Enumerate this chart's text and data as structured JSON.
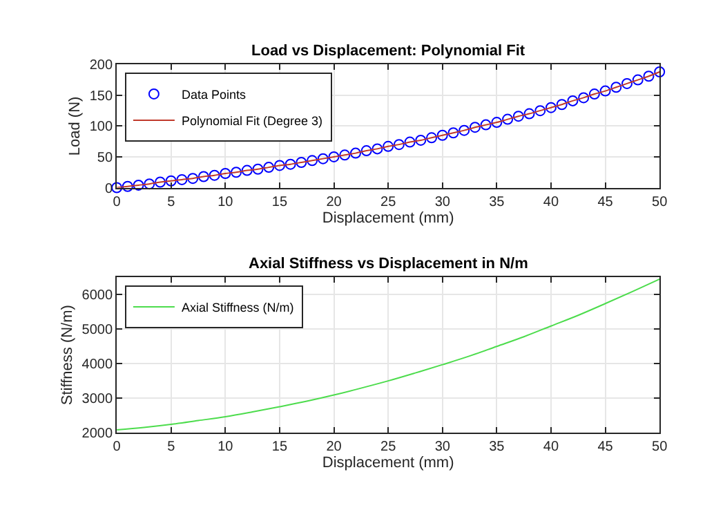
{
  "chart_data": [
    {
      "type": "scatter",
      "title": "Load vs Displacement: Polynomial Fit",
      "xlabel": "Displacement (mm)",
      "ylabel": "Load (N)",
      "xlim": [
        0,
        50
      ],
      "xticks": [
        0,
        5,
        10,
        15,
        20,
        25,
        30,
        35,
        40,
        45,
        50
      ],
      "ylim": [
        0,
        200
      ],
      "yticks": [
        0,
        50,
        100,
        150,
        200
      ],
      "grid": true,
      "legend": "top left",
      "x": [
        0,
        1,
        2,
        3,
        4,
        5,
        6,
        7,
        8,
        9,
        10,
        11,
        12,
        13,
        14,
        15,
        16,
        17,
        18,
        19,
        20,
        21,
        22,
        23,
        24,
        25,
        26,
        27,
        28,
        29,
        30,
        31,
        32,
        33,
        34,
        35,
        36,
        37,
        38,
        39,
        40,
        41,
        42,
        43,
        44,
        45,
        46,
        47,
        48,
        49,
        50
      ],
      "series": [
        {
          "name": "Data Points",
          "type": "scatter",
          "marker": "circle",
          "color": "#0000ff",
          "values": [
            0,
            2,
            4,
            6,
            9,
            11,
            13,
            15,
            18,
            20,
            23,
            25,
            28,
            30,
            33,
            36,
            38,
            41,
            44,
            47,
            50,
            53,
            56,
            60,
            63,
            67,
            70,
            74,
            77,
            81,
            85,
            89,
            93,
            98,
            102,
            106,
            111,
            116,
            120,
            125,
            130,
            135,
            141,
            146,
            152,
            157,
            163,
            169,
            175,
            181,
            188
          ]
        },
        {
          "name": "Polynomial Fit (Degree 3)",
          "type": "line",
          "marker": "none",
          "line_style": "solid",
          "color": "#c0392b",
          "values": [
            0,
            2,
            4,
            6,
            9,
            11,
            13,
            15,
            18,
            20,
            23,
            25,
            28,
            30,
            33,
            36,
            38,
            41,
            44,
            47,
            50,
            53,
            56,
            60,
            63,
            67,
            70,
            74,
            77,
            81,
            85,
            89,
            93,
            98,
            102,
            106,
            111,
            116,
            120,
            125,
            130,
            135,
            141,
            146,
            152,
            157,
            163,
            169,
            175,
            181,
            188
          ]
        }
      ]
    },
    {
      "type": "line",
      "title": "Axial Stiffness vs Displacement in N/m",
      "xlabel": "Displacement (mm)",
      "ylabel": "Stiffness (N/m)",
      "xlim": [
        0,
        50
      ],
      "xticks": [
        0,
        5,
        10,
        15,
        20,
        25,
        30,
        35,
        40,
        45,
        50
      ],
      "ylim": [
        2000,
        6500
      ],
      "yticks": [
        2000,
        3000,
        4000,
        5000,
        6000
      ],
      "grid": true,
      "legend": "top left",
      "marker": "none",
      "line_style": "solid",
      "x": [
        0,
        2.5,
        5,
        7.5,
        10,
        12.5,
        15,
        17.5,
        20,
        22.5,
        25,
        27.5,
        30,
        32.5,
        35,
        37.5,
        40,
        42.5,
        45,
        47.5,
        50
      ],
      "series": [
        {
          "name": "Axial Stiffness (N/m)",
          "color": "#4cdc4c",
          "values": [
            2080,
            2150,
            2240,
            2350,
            2460,
            2600,
            2750,
            2910,
            3090,
            3290,
            3500,
            3730,
            3970,
            4220,
            4500,
            4780,
            5090,
            5400,
            5740,
            6090,
            6450
          ]
        }
      ]
    }
  ]
}
